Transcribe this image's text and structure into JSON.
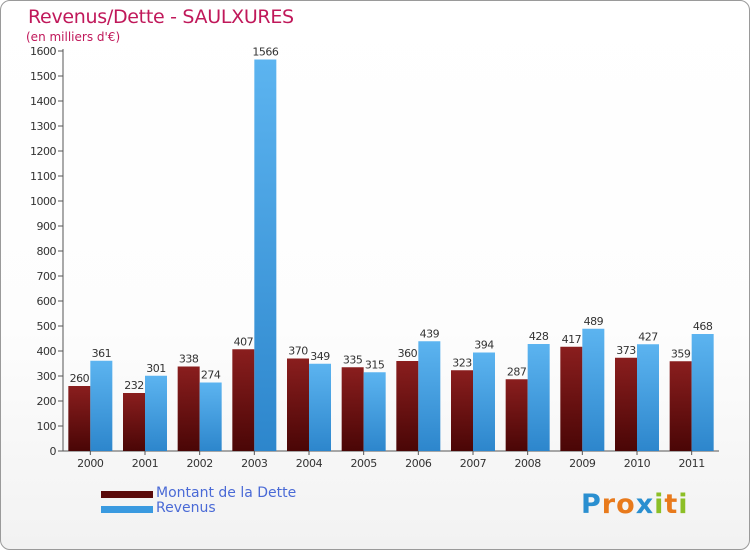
{
  "header": {
    "title": "Revenus/Dette - SAULXURES",
    "subtitle": "(en milliers d'€)"
  },
  "legend": {
    "debt_label": "Montant de la Dette",
    "revenue_label": "Revenus"
  },
  "logo": {
    "text": "Proxiti",
    "letters": [
      "P",
      "r",
      "o",
      "x",
      "i",
      "t",
      "i"
    ],
    "letter_colors": [
      "#2a8fd0",
      "#e87a1c",
      "#e87a1c",
      "#2a8fd0",
      "#8cbf26",
      "#e87a1c",
      "#8cbf26"
    ]
  },
  "colors": {
    "debt": "#5a0a0a",
    "revenue": "#3a9ae0",
    "title": "#c0185a",
    "axis": "#444444"
  },
  "chart_data": {
    "type": "bar",
    "title": "Revenus/Dette - SAULXURES",
    "ylabel": "(en milliers d'€)",
    "xlabel": "",
    "ylim": [
      0,
      1600
    ],
    "ytick_step": 100,
    "categories": [
      "2000",
      "2001",
      "2002",
      "2003",
      "2004",
      "2005",
      "2006",
      "2007",
      "2008",
      "2009",
      "2010",
      "2011"
    ],
    "series": [
      {
        "name": "Montant de la Dette",
        "values": [
          260,
          232,
          338,
          407,
          370,
          335,
          360,
          323,
          287,
          417,
          373,
          359
        ]
      },
      {
        "name": "Revenus",
        "values": [
          361,
          301,
          274,
          1566,
          349,
          315,
          439,
          394,
          428,
          489,
          427,
          468
        ]
      }
    ]
  }
}
